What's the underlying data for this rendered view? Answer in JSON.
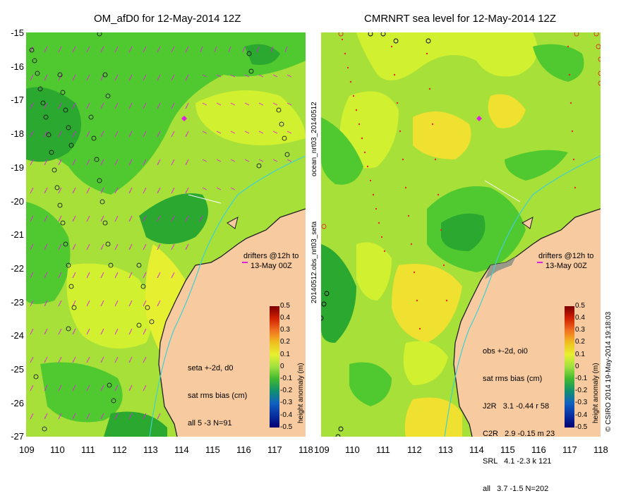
{
  "left_panel": {
    "title": "OM_afD0 for 12-May-2014 12Z",
    "drifter_label_line1": "drifters @12h to",
    "drifter_label_line2": "13-May 00Z",
    "stats_line1": "seta +-2d, d0",
    "stats_line2": "sat rms bias (cm)",
    "stats_line3": "all 5 -3 N=91",
    "colorbar_label": "height anomaly (m)"
  },
  "right_panel": {
    "title": "CMRNRT sea level  for 12-May-2014 12Z",
    "side_text_top": "ocean_nrt03_20140512",
    "side_text_bottom": "20140512.obs_nrt03_seta",
    "drifter_label_line1": "drifters @12h to",
    "drifter_label_line2": "13-May 00Z",
    "stats_line1": "obs +-2d, oi0",
    "stats_line2": "sat rms bias (cm)",
    "stats_line3": "J2R   3.1 -0.44 r 58",
    "stats_line4": "C2R   2.9 -0.15 m 23",
    "stats_line5": "SRL   4.1 -2.3 k 121",
    "stats_line6": "all   3.7 -1.5 N=202",
    "colorbar_label": "height anomaly (m)",
    "credit": "© CSIRO 2014   19-May-2014 19:18:03"
  },
  "y_ticks": [
    "-15",
    "-16",
    "-17",
    "-18",
    "-19",
    "-20",
    "-21",
    "-22",
    "-23",
    "-24",
    "-25",
    "-26",
    "-27"
  ],
  "x_ticks": [
    "109",
    "110",
    "111",
    "112",
    "113",
    "114",
    "115",
    "116",
    "117",
    "118"
  ],
  "colorbar_ticks": [
    "0.5",
    "0.4",
    "0.3",
    "0.2",
    "0.1",
    "0",
    "-0.1",
    "-0.2",
    "-0.3",
    "-0.4",
    "-0.5"
  ],
  "colors": {
    "land": "#f7caa0",
    "coast_grey": "#9a9a8a",
    "vector": "#e020e0",
    "track_red": "#e03020",
    "low_green": "#10a030",
    "mid_green": "#50c830",
    "light_green": "#a0e040",
    "yellow_green": "#d0f030",
    "yellow": "#f0e030",
    "river": "#40d0d0"
  }
}
